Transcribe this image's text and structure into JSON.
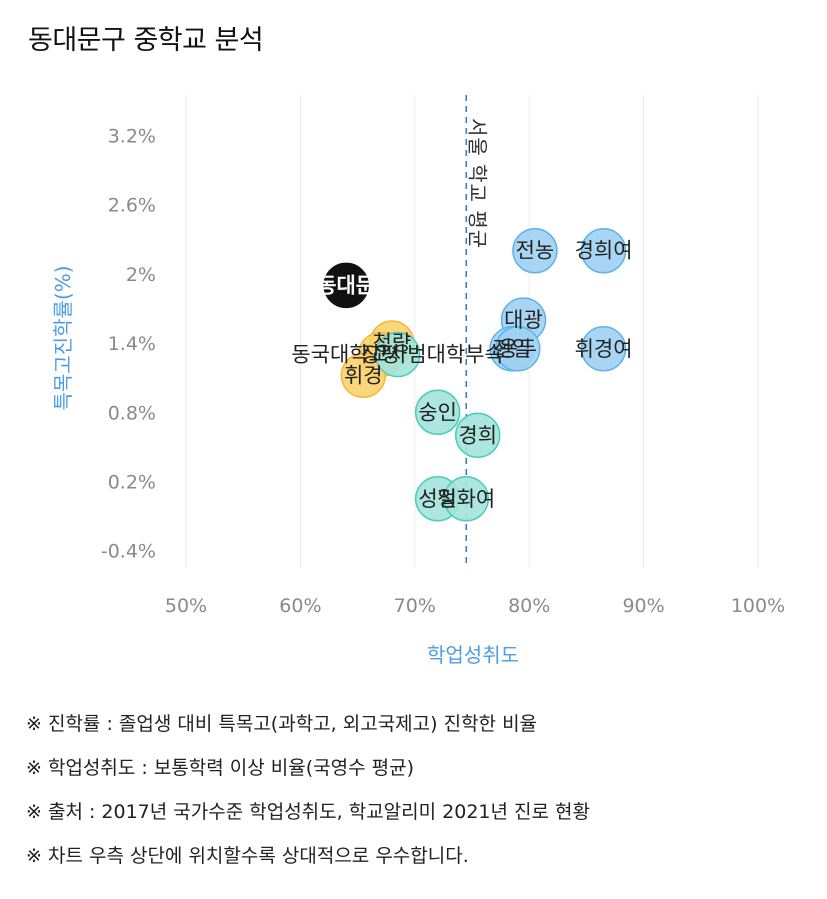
{
  "title": "동대문구 중학교 분석",
  "chart_data": {
    "type": "scatter",
    "xlabel": "학업성취도",
    "ylabel": "특목고진학률(%)",
    "xlim": [
      50,
      100
    ],
    "ylim": [
      -0.55,
      3.55
    ],
    "x_ticks": [
      "50%",
      "60%",
      "70%",
      "80%",
      "90%",
      "100%"
    ],
    "y_ticks": [
      "3.2%",
      "2.6%",
      "2%",
      "1.4%",
      "0.8%",
      "0.2%",
      "-0.4%"
    ],
    "reference_line_x": 74.5,
    "grid": "vertical",
    "colors": {
      "black": "#111111",
      "blue": "#9fd0f2",
      "blue_stroke": "#5fb3ea",
      "yellow": "#fbd26b",
      "yellow_stroke": "#f2b93a",
      "green": "#a3e3da",
      "green_stroke": "#4ccdbb"
    },
    "points": [
      {
        "label": "동대문",
        "x": 64,
        "y": 1.9,
        "color": "black"
      },
      {
        "label": "청량",
        "x": 68,
        "y": 1.4,
        "color": "yellow"
      },
      {
        "label": "장평",
        "x": 67,
        "y": 1.3,
        "color": "yellow"
      },
      {
        "label": "휘경",
        "x": 65.5,
        "y": 1.12,
        "color": "yellow"
      },
      {
        "label": "동국대학교사범대학부속",
        "x": 68.5,
        "y": 1.3,
        "color": "green"
      },
      {
        "label": "숭인",
        "x": 72,
        "y": 0.8,
        "color": "green"
      },
      {
        "label": "경희",
        "x": 75.5,
        "y": 0.6,
        "color": "green"
      },
      {
        "label": "성일",
        "x": 72,
        "y": 0.05,
        "color": "green"
      },
      {
        "label": "정화여",
        "x": 74.5,
        "y": 0.05,
        "color": "green"
      },
      {
        "label": "전농",
        "x": 80.5,
        "y": 2.2,
        "color": "blue"
      },
      {
        "label": "경희여",
        "x": 86.5,
        "y": 2.2,
        "color": "blue"
      },
      {
        "label": "대광",
        "x": 79.5,
        "y": 1.6,
        "color": "blue"
      },
      {
        "label": "전일",
        "x": 78.5,
        "y": 1.35,
        "color": "blue"
      },
      {
        "label": "용두",
        "x": 79,
        "y": 1.35,
        "color": "blue"
      },
      {
        "label": "휘경여",
        "x": 86.5,
        "y": 1.35,
        "color": "blue"
      }
    ],
    "reference_label": "서울 학교 평균"
  },
  "notes": [
    "※ 진학률 : 졸업생 대비 특목고(과학고, 외고국제고) 진학한 비율",
    "※ 학업성취도 : 보통학력 이상 비율(국영수 평균)",
    "※ 출처 : 2017년 국가수준 학업성취도, 학교알리미 2021년 진로 현황",
    "※ 차트 우측 상단에 위치할수록 상대적으로 우수합니다."
  ]
}
